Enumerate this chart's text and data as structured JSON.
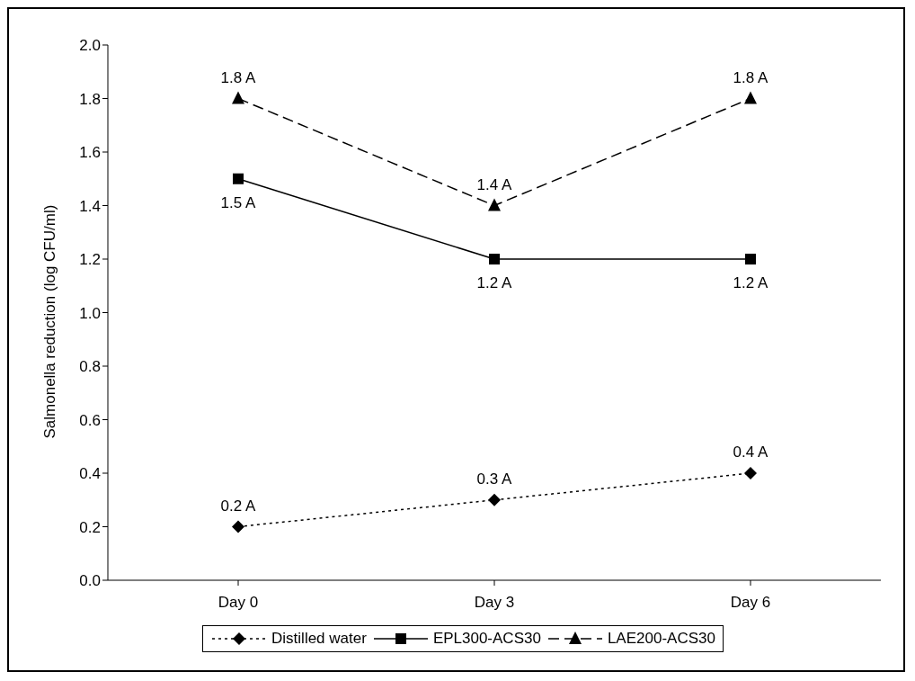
{
  "chart_data": {
    "type": "line",
    "ylabel": "Salmonella reduction (log CFU/ml)",
    "categories": [
      "Day 0",
      "Day 3",
      "Day 6"
    ],
    "series": [
      {
        "name": "Distilled water",
        "color": "#000000",
        "values": [
          0.2,
          0.3,
          0.4
        ],
        "marker": "diamond",
        "line_style": "dotted",
        "value_labels": [
          "0.2 A",
          "0.3 A",
          "0.4 A"
        ]
      },
      {
        "name": "EPL300-ACS30",
        "color": "#000000",
        "values": [
          1.5,
          1.2,
          1.2
        ],
        "marker": "square",
        "line_style": "solid",
        "value_labels": [
          "1.5 A",
          "1.2 A",
          "1.2 A"
        ]
      },
      {
        "name": "LAE200-ACS30",
        "color": "#000000",
        "values": [
          1.8,
          1.4,
          1.8
        ],
        "marker": "triangle",
        "line_style": "dashed",
        "value_labels": [
          "1.8 A",
          "1.4 A",
          "1.8 A"
        ]
      }
    ],
    "ylim": [
      0,
      2
    ],
    "yticks": [
      {
        "value": 0,
        "label": "0.0"
      },
      0.2,
      0.4,
      0.6,
      0.8,
      {
        "value": 1,
        "label": "1.0"
      },
      1.2,
      1.4,
      1.6,
      1.8,
      {
        "value": 2,
        "label": "2.0"
      }
    ],
    "grid": false,
    "legend": "bottom"
  }
}
